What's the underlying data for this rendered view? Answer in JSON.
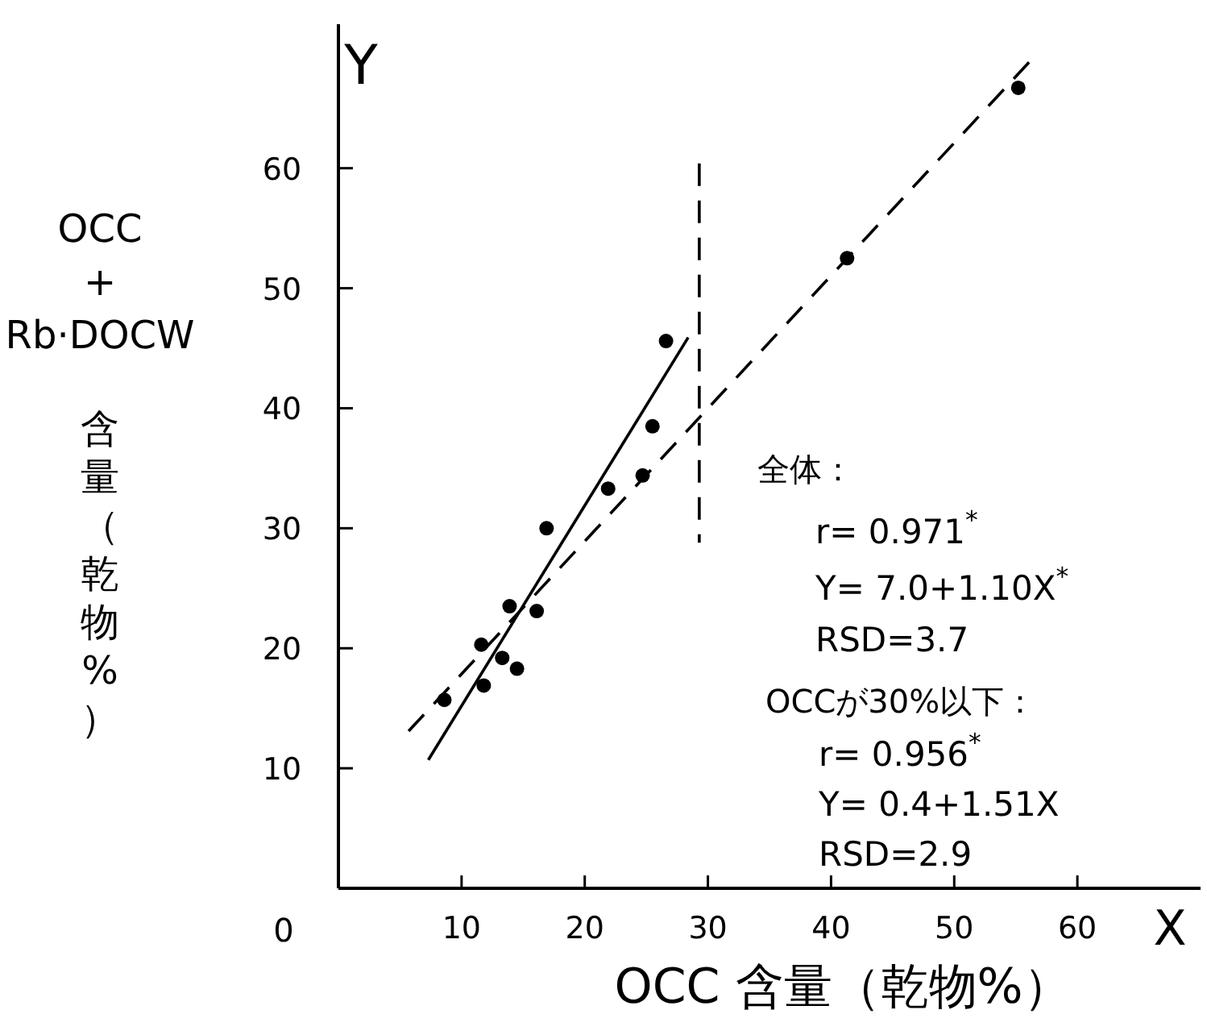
{
  "chart_data": {
    "type": "scatter",
    "xlabel": "OCC 含量（乾物%）",
    "ylabel": "OCC + Rb·DOCW 含量（乾物%）",
    "xlim": [
      0,
      70
    ],
    "ylim": [
      0,
      72
    ],
    "xticks": [
      10,
      20,
      30,
      40,
      50,
      60
    ],
    "yticks": [
      10,
      20,
      30,
      40,
      50,
      60
    ],
    "grid": false,
    "series": [
      {
        "color": "#000000",
        "marker": "circle",
        "x": [
          55.2,
          41.3,
          26.6,
          25.5,
          24.7,
          21.9,
          16.9,
          13.9,
          16.1,
          11.6,
          13.3,
          14.5,
          11.8,
          8.6
        ],
        "values": [
          66.7,
          52.5,
          45.6,
          38.5,
          34.4,
          33.3,
          30.0,
          23.5,
          23.1,
          20.3,
          19.2,
          18.3,
          16.9,
          15.7
        ]
      },
      {
        "type": "line",
        "color": "#000000",
        "line_style": "dashed",
        "x": [
          5.7,
          56.5
        ],
        "values": [
          13.1,
          69.3
        ]
      },
      {
        "type": "line",
        "color": "#000000",
        "line_style": "solid",
        "x": [
          7.3,
          28.4
        ],
        "values": [
          10.7,
          45.9
        ]
      },
      {
        "type": "line",
        "color": "#000000",
        "line_style": "dashed",
        "x": [
          29.3,
          29.3
        ],
        "values": [
          60.4,
          28.8
        ]
      }
    ],
    "annotations": [
      "0",
      "Y",
      "X",
      "全体：",
      "r= 0.971$^{*}$",
      "Y= 7.0+1.10X$^{*}$",
      "RSD=3.7",
      "OCCが30%以下：",
      "r= 0.956$^{*}$",
      "Y= 0.4+1.51X",
      "RSD=2.9"
    ]
  }
}
